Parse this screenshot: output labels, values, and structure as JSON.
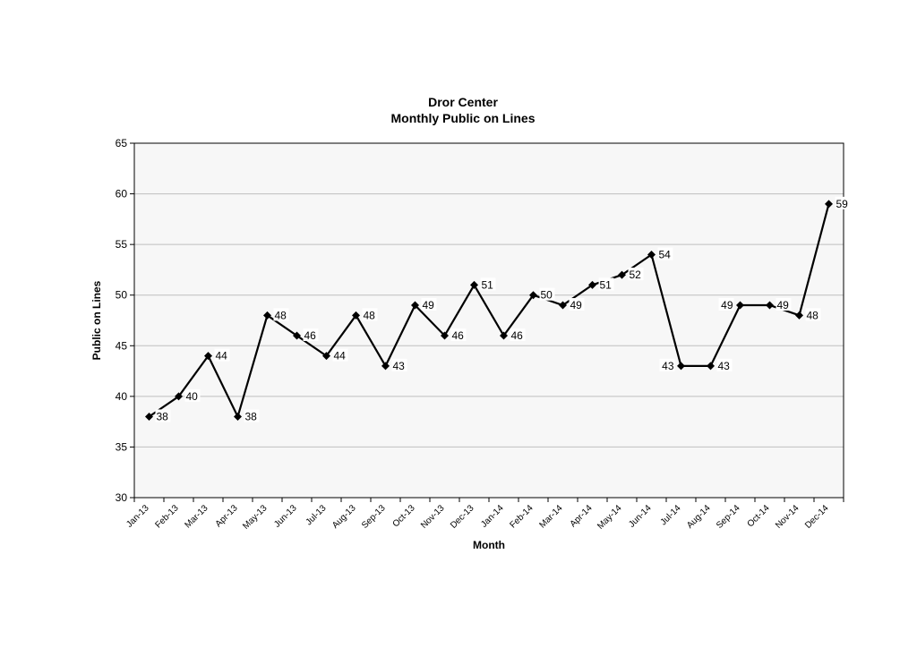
{
  "chart_data": {
    "type": "line",
    "title": "Dror Center",
    "subtitle": "Monthly Public on Lines",
    "xlabel": "Month",
    "ylabel": "Public on Lines",
    "ylim": [
      30,
      65
    ],
    "yticks": [
      30,
      35,
      40,
      45,
      50,
      55,
      60,
      65
    ],
    "grid": true,
    "legend": "none",
    "categories": [
      "Jan-13",
      "Feb-13",
      "Mar-13",
      "Apr-13",
      "May-13",
      "Jun-13",
      "Jul-13",
      "Aug-13",
      "Sep-13",
      "Oct-13",
      "Nov-13",
      "Dec-13",
      "Jan-14",
      "Feb-14",
      "Mar-14",
      "Apr-14",
      "May-14",
      "Jun-14",
      "Jul-14",
      "Aug-14",
      "Sep-14",
      "Oct-14",
      "Nov-14",
      "Dec-14"
    ],
    "series": [
      {
        "values": [
          38,
          40,
          44,
          38,
          48,
          46,
          44,
          48,
          43,
          49,
          46,
          51,
          46,
          50,
          49,
          51,
          52,
          54,
          43,
          43,
          49,
          49,
          48,
          59
        ],
        "color": "#000000"
      }
    ],
    "plot_background": "#f7f7f7",
    "gridline_color": "#bfbfbf"
  }
}
